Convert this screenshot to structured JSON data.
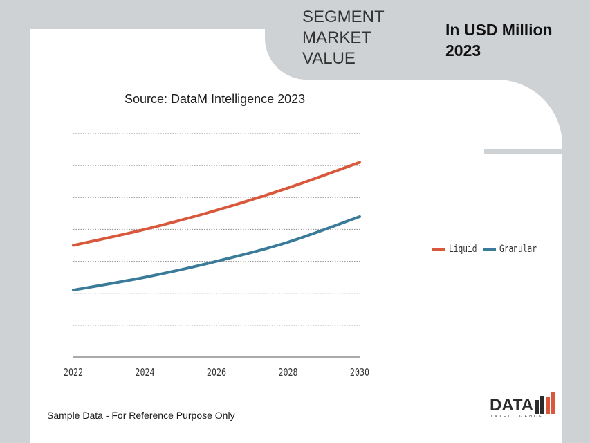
{
  "header": {
    "segment_title": "SEGMENT\nMARKET\nVALUE",
    "units_title": "In USD Million\n2023"
  },
  "source": "Source: DataM Intelligence 2023",
  "footnote": "Sample Data - For Reference Purpose Only",
  "logo": {
    "text": "DATA",
    "subtext": "INTELLIGENCE"
  },
  "colors": {
    "liquid": "#d9573b",
    "granular": "#3a7b99",
    "background": "#ced2d5"
  },
  "chart_data": {
    "type": "line",
    "x": [
      2022,
      2024,
      2026,
      2028,
      2030
    ],
    "x_tick_labels": [
      "2022",
      "2024",
      "2026",
      "2028",
      "2030"
    ],
    "ylim": [
      0,
      7
    ],
    "grid": true,
    "legend_position": "right",
    "series": [
      {
        "name": "Liquid",
        "color": "#d9573b",
        "values": [
          3.5,
          4.0,
          4.6,
          5.3,
          6.1
        ]
      },
      {
        "name": "Granular",
        "color": "#3a7b99",
        "values": [
          2.1,
          2.5,
          3.0,
          3.6,
          4.4
        ]
      }
    ]
  }
}
